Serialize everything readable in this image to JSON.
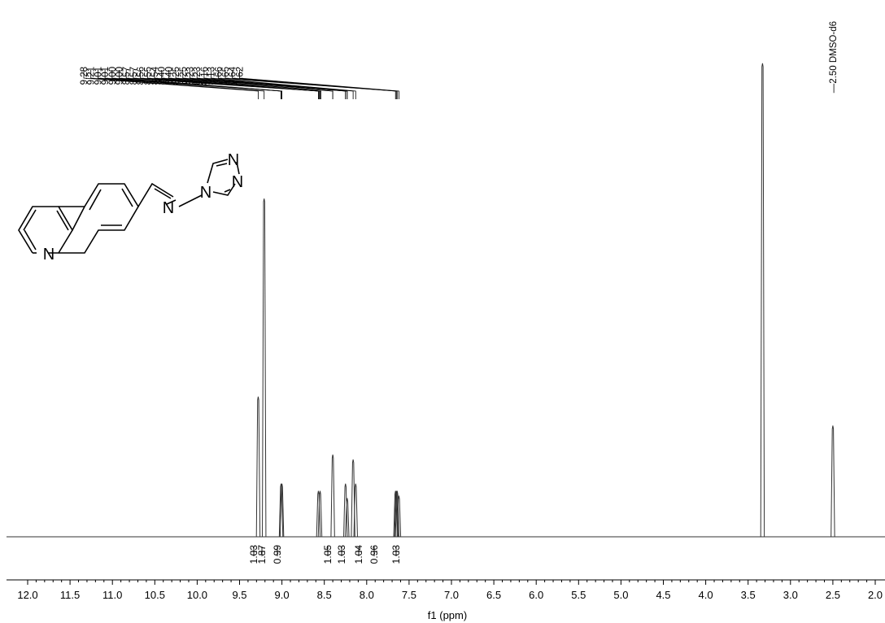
{
  "chart_data": {
    "type": "line",
    "xlabel": "f1 (ppm)",
    "xlim": [
      12.0,
      2.0
    ],
    "x_reversed": true,
    "grid": false,
    "x_ticks": [
      "12.0",
      "11.5",
      "11.0",
      "10.5",
      "10.0",
      "9.5",
      "9.0",
      "8.5",
      "8.0",
      "7.5",
      "7.0",
      "6.5",
      "6.0",
      "5.5",
      "5.0",
      "4.5",
      "4.0",
      "3.5",
      "3.0",
      "2.5",
      "2.0"
    ],
    "signals": [
      {
        "ppm": 9.28,
        "height": 0.29
      },
      {
        "ppm": 9.21,
        "height": 0.7
      },
      {
        "ppm": 9.01,
        "height": 0.11
      },
      {
        "ppm": 9.0,
        "height": 0.11
      },
      {
        "ppm": 8.57,
        "height": 0.095
      },
      {
        "ppm": 8.55,
        "height": 0.095
      },
      {
        "ppm": 8.4,
        "height": 0.17
      },
      {
        "ppm": 8.25,
        "height": 0.11
      },
      {
        "ppm": 8.23,
        "height": 0.08
      },
      {
        "ppm": 8.16,
        "height": 0.16
      },
      {
        "ppm": 8.13,
        "height": 0.11
      },
      {
        "ppm": 7.66,
        "height": 0.095
      },
      {
        "ppm": 7.65,
        "height": 0.095
      },
      {
        "ppm": 7.64,
        "height": 0.095
      },
      {
        "ppm": 7.62,
        "height": 0.085
      },
      {
        "ppm": 3.33,
        "height": 0.98
      },
      {
        "ppm": 2.5,
        "height": 0.23
      }
    ],
    "peak_labels": [
      "9.28",
      "9.21",
      "9.01",
      "9.01",
      "9.00",
      "9.00",
      "8.57",
      "8.57",
      "8.56",
      "8.55",
      "8.54",
      "8.40",
      "8.40",
      "8.25",
      "8.25",
      "8.23",
      "8.23",
      "8.16",
      "8.13",
      "7.66",
      "7.65",
      "7.64",
      "7.62"
    ],
    "solvent_label": "2.50 DMSO-d6",
    "solvent_ppm": 2.5,
    "integrals": [
      {
        "ppm": 9.28,
        "value": "1.03"
      },
      {
        "ppm": 9.21,
        "value": "1.87"
      },
      {
        "ppm": 9.0,
        "value": "0.99"
      },
      {
        "ppm": 8.56,
        "value": "1.05"
      },
      {
        "ppm": 8.4,
        "value": "1.03"
      },
      {
        "ppm": 8.24,
        "value": "1.04"
      },
      {
        "ppm": 8.14,
        "value": "0.96"
      },
      {
        "ppm": 7.64,
        "value": "1.03"
      }
    ]
  },
  "structure": {
    "atoms": {
      "quinoline_n": "N",
      "imine_n": "N",
      "triazole_n4": "N",
      "triazole_n1": "N",
      "triazole_n2": "N"
    }
  }
}
